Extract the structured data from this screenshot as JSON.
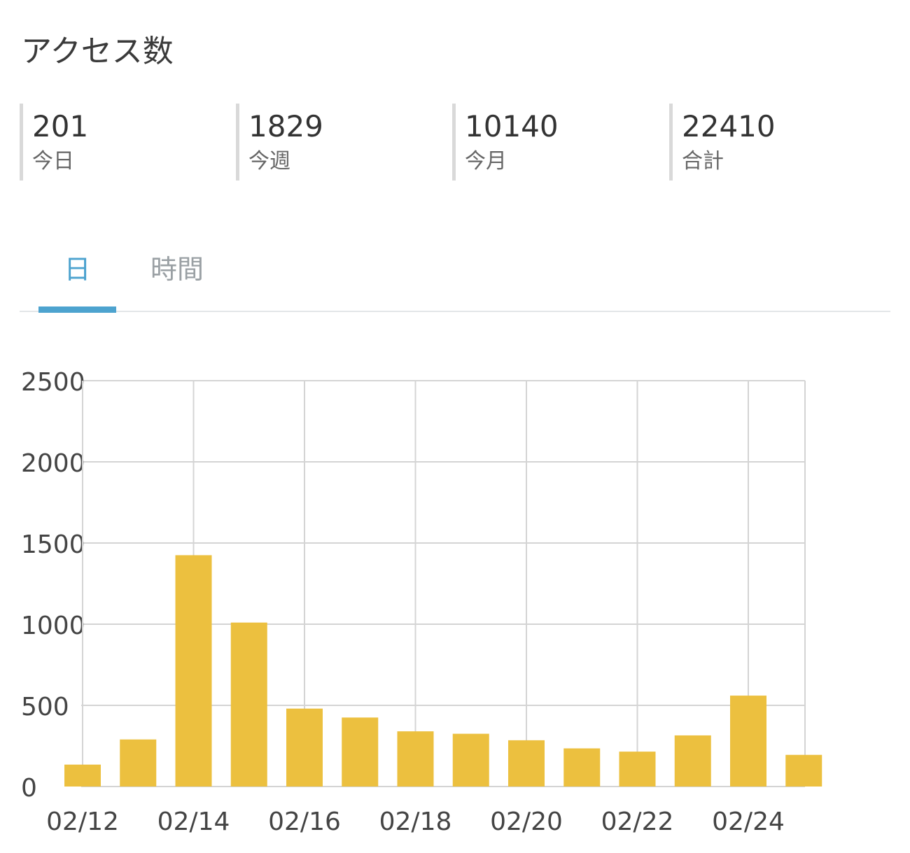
{
  "page": {
    "title": "アクセス数"
  },
  "stats": [
    {
      "value": "201",
      "label": "今日"
    },
    {
      "value": "1829",
      "label": "今週"
    },
    {
      "value": "10140",
      "label": "今月"
    },
    {
      "value": "22410",
      "label": "合計"
    }
  ],
  "tabs": [
    {
      "label": "日",
      "active": true
    },
    {
      "label": "時間",
      "active": false
    }
  ],
  "colors": {
    "accent": "#4da3cf",
    "bar": "#ecc03f",
    "grid": "#d4d4d4"
  },
  "chart_data": {
    "type": "bar",
    "categories": [
      "02/12",
      "02/13",
      "02/14",
      "02/15",
      "02/16",
      "02/17",
      "02/18",
      "02/19",
      "02/20",
      "02/21",
      "02/22",
      "02/23",
      "02/24",
      "02/25"
    ],
    "x_tick_labels": [
      "02/12",
      "02/14",
      "02/16",
      "02/18",
      "02/20",
      "02/22",
      "02/24"
    ],
    "values": [
      135,
      290,
      1425,
      1010,
      480,
      425,
      340,
      325,
      285,
      235,
      215,
      315,
      560,
      195
    ],
    "ylim": [
      0,
      2500
    ],
    "y_ticks": [
      0,
      500,
      1000,
      1500,
      2000,
      2500
    ],
    "grid": true
  }
}
